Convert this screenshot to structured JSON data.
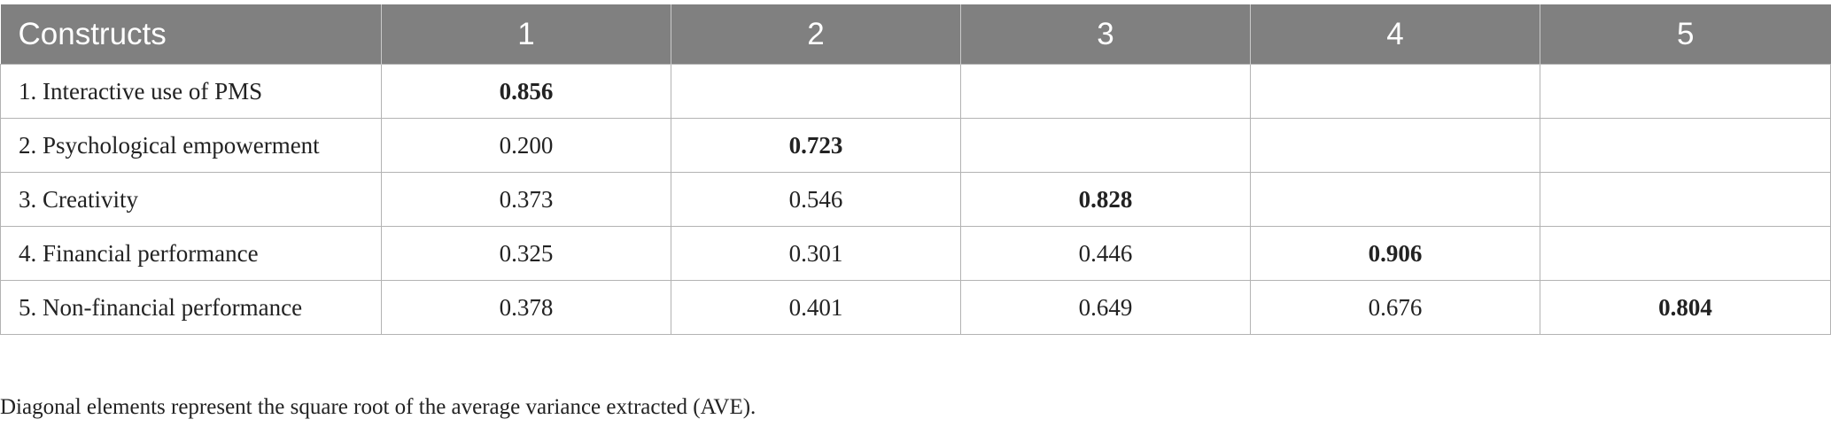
{
  "table": {
    "headers": [
      "Constructs",
      "1",
      "2",
      "3",
      "4",
      "5"
    ],
    "rows": [
      {
        "construct": "1. Interactive use of PMS",
        "values": [
          "0.856",
          "",
          "",
          "",
          ""
        ]
      },
      {
        "construct": "2. Psychological empowerment",
        "values": [
          "0.200",
          "0.723",
          "",
          "",
          ""
        ]
      },
      {
        "construct": "3. Creativity",
        "values": [
          "0.373",
          "0.546",
          "0.828",
          "",
          ""
        ]
      },
      {
        "construct": "4. Financial performance",
        "values": [
          "0.325",
          "0.301",
          "0.446",
          "0.906",
          ""
        ]
      },
      {
        "construct": "5. Non-financial performance",
        "values": [
          "0.378",
          "0.401",
          "0.649",
          "0.676",
          "0.804"
        ]
      }
    ]
  },
  "footnote": "Diagonal elements represent the square root of the average variance extracted (AVE)."
}
